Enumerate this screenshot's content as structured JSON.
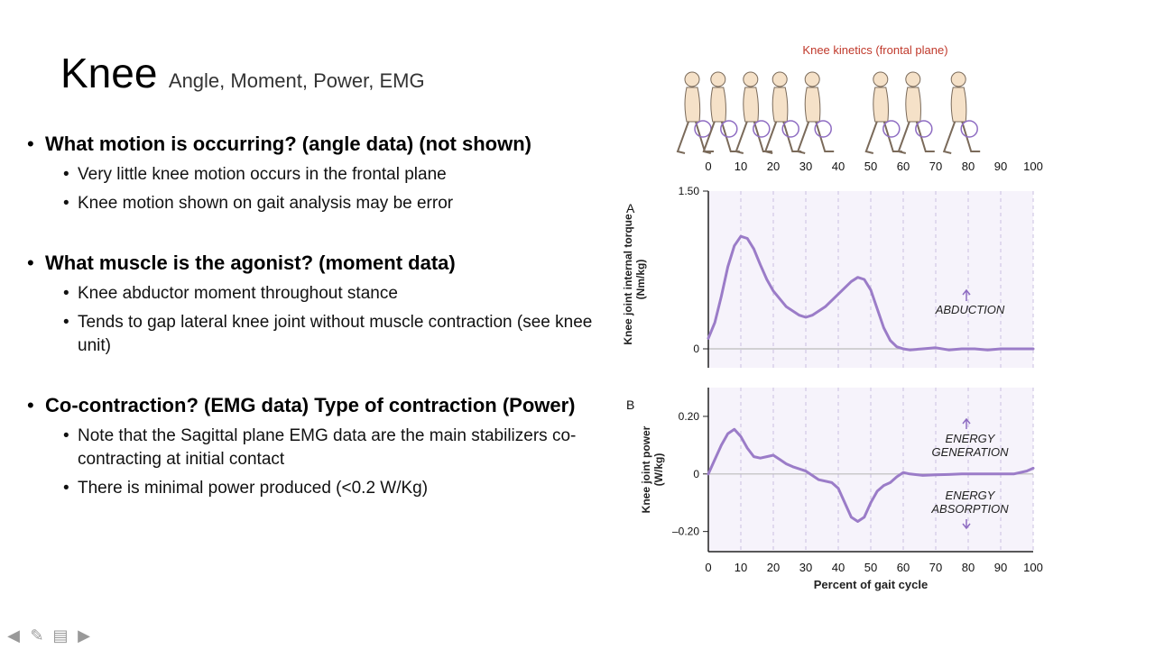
{
  "slide": {
    "title": "Knee",
    "subtitle": "Angle, Moment, Power, EMG",
    "sections": [
      {
        "heading": "What motion is occurring? (angle data) (not shown)",
        "items": [
          "Very little knee motion occurs in the frontal plane",
          "Knee motion shown on gait analysis may be error"
        ]
      },
      {
        "heading": "What muscle is the agonist? (moment data)",
        "items": [
          "Knee abductor moment throughout stance",
          "Tends to gap lateral knee joint without muscle contraction (see knee unit)"
        ]
      },
      {
        "heading": "Co-contraction? (EMG data) Type of contraction (Power)",
        "items": [
          "Note that the Sagittal plane EMG data are the main stabilizers co-contracting at initial contact",
          "There is minimal power produced (<0.2 W/Kg)"
        ]
      }
    ]
  },
  "figure": {
    "title": "Knee kinetics (frontal plane)",
    "gait_ticks": [
      "0",
      "10",
      "20",
      "30",
      "40",
      "50",
      "60",
      "70",
      "80",
      "90",
      "100"
    ],
    "figure_icons": [
      "walking-figure-icon"
    ]
  },
  "chart_data": [
    {
      "type": "line",
      "panel_label": "A",
      "title": "",
      "xlabel": "",
      "ylabel": "Knee joint internal torque (Nm/kg)",
      "xlim": [
        0,
        100
      ],
      "ylim": [
        -0.18,
        1.5
      ],
      "y_ticks": [
        "1.50",
        "0"
      ],
      "annotation": "ABDUCTION",
      "series": [
        {
          "color": "#9b7cc8",
          "x": [
            0,
            2,
            4,
            6,
            8,
            10,
            12,
            14,
            16,
            18,
            20,
            24,
            28,
            30,
            32,
            36,
            40,
            44,
            46,
            48,
            50,
            52,
            54,
            56,
            58,
            60,
            62,
            66,
            70,
            74,
            78,
            82,
            86,
            90,
            94,
            100
          ],
          "y": [
            0.1,
            0.25,
            0.5,
            0.78,
            0.98,
            1.07,
            1.05,
            0.95,
            0.8,
            0.66,
            0.55,
            0.4,
            0.32,
            0.3,
            0.32,
            0.4,
            0.52,
            0.64,
            0.68,
            0.66,
            0.56,
            0.38,
            0.2,
            0.08,
            0.02,
            0.0,
            -0.01,
            0.0,
            0.01,
            -0.01,
            0.0,
            0.0,
            -0.01,
            0.0,
            0.0,
            0.0
          ]
        }
      ]
    },
    {
      "type": "line",
      "panel_label": "B",
      "title": "",
      "xlabel": "Percent of gait cycle",
      "ylabel": "Knee joint power (W/kg)",
      "xlim": [
        0,
        100
      ],
      "ylim": [
        -0.27,
        0.3
      ],
      "x_ticks": [
        "0",
        "10",
        "20",
        "30",
        "40",
        "50",
        "60",
        "70",
        "80",
        "90",
        "100"
      ],
      "y_ticks": [
        "0.20",
        "0",
        "–0.20"
      ],
      "annotations": [
        "ENERGY GENERATION",
        "ENERGY ABSORPTION"
      ],
      "series": [
        {
          "color": "#9b7cc8",
          "x": [
            0,
            2,
            4,
            6,
            8,
            10,
            12,
            14,
            16,
            18,
            20,
            22,
            24,
            26,
            30,
            34,
            38,
            40,
            42,
            44,
            46,
            48,
            50,
            52,
            54,
            56,
            58,
            60,
            62,
            66,
            70,
            74,
            78,
            82,
            86,
            90,
            94,
            98,
            100
          ],
          "y": [
            0.0,
            0.05,
            0.1,
            0.14,
            0.155,
            0.13,
            0.09,
            0.06,
            0.055,
            0.06,
            0.065,
            0.05,
            0.035,
            0.025,
            0.01,
            -0.02,
            -0.03,
            -0.05,
            -0.1,
            -0.15,
            -0.165,
            -0.15,
            -0.1,
            -0.06,
            -0.04,
            -0.03,
            -0.01,
            0.005,
            0.0,
            -0.005,
            -0.003,
            -0.002,
            0.0,
            0.0,
            0.0,
            0.0,
            0.0,
            0.01,
            0.02
          ]
        }
      ]
    }
  ]
}
